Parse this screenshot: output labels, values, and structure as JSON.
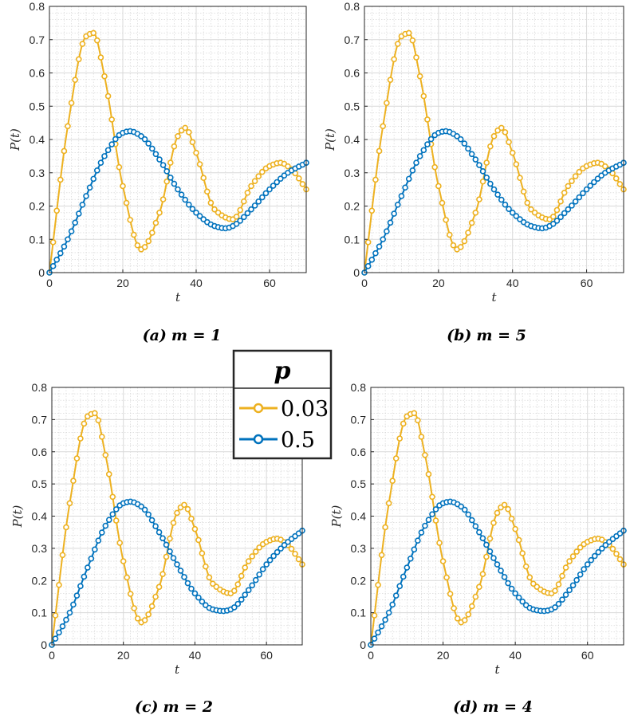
{
  "chart_data": [
    {
      "type": "line",
      "caption_letter": "(a)",
      "caption_eq": "m = 1",
      "xlabel": "t",
      "ylabel": "P(t)",
      "xlim": [
        0,
        70
      ],
      "ylim": [
        0,
        0.8
      ],
      "xticks": [
        "0",
        "20",
        "40",
        "60"
      ],
      "yticks": [
        "0",
        "0.1",
        "0.2",
        "0.3",
        "0.4",
        "0.5",
        "0.6",
        "0.7",
        "0.8"
      ],
      "grid": true,
      "series": [
        {
          "name": "0.03",
          "color": "#EDB120",
          "x": [
            0,
            5,
            10,
            12,
            15,
            20,
            25,
            30,
            35,
            37,
            40,
            45,
            50,
            55,
            60,
            63,
            66,
            70
          ],
          "values": [
            0.0,
            0.44,
            0.71,
            0.72,
            0.59,
            0.26,
            0.07,
            0.18,
            0.41,
            0.435,
            0.36,
            0.19,
            0.16,
            0.26,
            0.32,
            0.33,
            0.31,
            0.25
          ]
        },
        {
          "name": "0.5",
          "color": "#0072BD",
          "x": [
            0,
            5,
            10,
            15,
            20,
            22,
            25,
            30,
            35,
            40,
            45,
            48,
            50,
            55,
            60,
            65,
            70
          ],
          "values": [
            0.0,
            0.1,
            0.23,
            0.35,
            0.42,
            0.425,
            0.41,
            0.34,
            0.25,
            0.18,
            0.14,
            0.133,
            0.14,
            0.19,
            0.25,
            0.3,
            0.33
          ]
        }
      ]
    },
    {
      "type": "line",
      "caption_letter": "(b)",
      "caption_eq": "m = 5",
      "xlabel": "t",
      "ylabel": "P(t)",
      "xlim": [
        0,
        70
      ],
      "ylim": [
        0,
        0.8
      ],
      "xticks": [
        "0",
        "20",
        "40",
        "60"
      ],
      "yticks": [
        "0",
        "0.1",
        "0.2",
        "0.3",
        "0.4",
        "0.5",
        "0.6",
        "0.7",
        "0.8"
      ],
      "grid": true,
      "series": [
        {
          "name": "0.03",
          "color": "#EDB120",
          "x": [
            0,
            5,
            10,
            12,
            15,
            20,
            25,
            30,
            35,
            37,
            40,
            45,
            50,
            55,
            60,
            63,
            66,
            70
          ],
          "values": [
            0.0,
            0.44,
            0.71,
            0.72,
            0.59,
            0.26,
            0.07,
            0.18,
            0.41,
            0.435,
            0.36,
            0.19,
            0.16,
            0.26,
            0.32,
            0.33,
            0.31,
            0.25
          ]
        },
        {
          "name": "0.5",
          "color": "#0072BD",
          "x": [
            0,
            5,
            10,
            15,
            20,
            22,
            25,
            30,
            35,
            40,
            45,
            48,
            50,
            55,
            60,
            65,
            70
          ],
          "values": [
            0.0,
            0.1,
            0.23,
            0.35,
            0.42,
            0.425,
            0.41,
            0.34,
            0.25,
            0.18,
            0.14,
            0.133,
            0.14,
            0.19,
            0.25,
            0.3,
            0.33
          ]
        }
      ]
    },
    {
      "type": "line",
      "caption_letter": "(c)",
      "caption_eq": "m = 2",
      "xlabel": "t",
      "ylabel": "P(t)",
      "xlim": [
        0,
        70
      ],
      "ylim": [
        0,
        0.8
      ],
      "xticks": [
        "0",
        "20",
        "40",
        "60"
      ],
      "yticks": [
        "0",
        "0.1",
        "0.2",
        "0.3",
        "0.4",
        "0.5",
        "0.6",
        "0.7",
        "0.8"
      ],
      "grid": true,
      "series": [
        {
          "name": "0.03",
          "color": "#EDB120",
          "x": [
            0,
            5,
            10,
            12,
            15,
            20,
            25,
            30,
            35,
            37,
            40,
            45,
            50,
            55,
            60,
            63,
            66,
            70
          ],
          "values": [
            0.0,
            0.44,
            0.71,
            0.72,
            0.59,
            0.26,
            0.07,
            0.18,
            0.41,
            0.435,
            0.36,
            0.19,
            0.16,
            0.26,
            0.32,
            0.33,
            0.31,
            0.25
          ]
        },
        {
          "name": "0.5",
          "color": "#0072BD",
          "x": [
            0,
            5,
            10,
            15,
            20,
            22,
            25,
            30,
            35,
            40,
            45,
            48,
            50,
            55,
            60,
            65,
            70
          ],
          "values": [
            0.0,
            0.1,
            0.24,
            0.37,
            0.44,
            0.445,
            0.43,
            0.35,
            0.25,
            0.16,
            0.11,
            0.105,
            0.11,
            0.17,
            0.25,
            0.31,
            0.355
          ]
        }
      ]
    },
    {
      "type": "line",
      "caption_letter": "(d)",
      "caption_eq": "m = 4",
      "xlabel": "t",
      "ylabel": "P(t)",
      "xlim": [
        0,
        70
      ],
      "ylim": [
        0,
        0.8
      ],
      "xticks": [
        "0",
        "20",
        "40",
        "60"
      ],
      "yticks": [
        "0",
        "0.1",
        "0.2",
        "0.3",
        "0.4",
        "0.5",
        "0.6",
        "0.7",
        "0.8"
      ],
      "grid": true,
      "series": [
        {
          "name": "0.03",
          "color": "#EDB120",
          "x": [
            0,
            5,
            10,
            12,
            15,
            20,
            25,
            30,
            35,
            37,
            40,
            45,
            50,
            55,
            60,
            63,
            66,
            70
          ],
          "values": [
            0.0,
            0.44,
            0.71,
            0.72,
            0.59,
            0.26,
            0.07,
            0.18,
            0.41,
            0.435,
            0.36,
            0.19,
            0.16,
            0.26,
            0.32,
            0.33,
            0.31,
            0.25
          ]
        },
        {
          "name": "0.5",
          "color": "#0072BD",
          "x": [
            0,
            5,
            10,
            15,
            20,
            22,
            25,
            30,
            35,
            40,
            45,
            48,
            50,
            55,
            60,
            65,
            70
          ],
          "values": [
            0.0,
            0.1,
            0.24,
            0.37,
            0.44,
            0.445,
            0.43,
            0.35,
            0.25,
            0.16,
            0.11,
            0.105,
            0.11,
            0.17,
            0.25,
            0.31,
            0.355
          ]
        }
      ]
    }
  ],
  "legend": {
    "title": "p",
    "entries": [
      {
        "label": "0.03",
        "color": "#EDB120"
      },
      {
        "label": "0.5",
        "color": "#0072BD"
      }
    ]
  }
}
